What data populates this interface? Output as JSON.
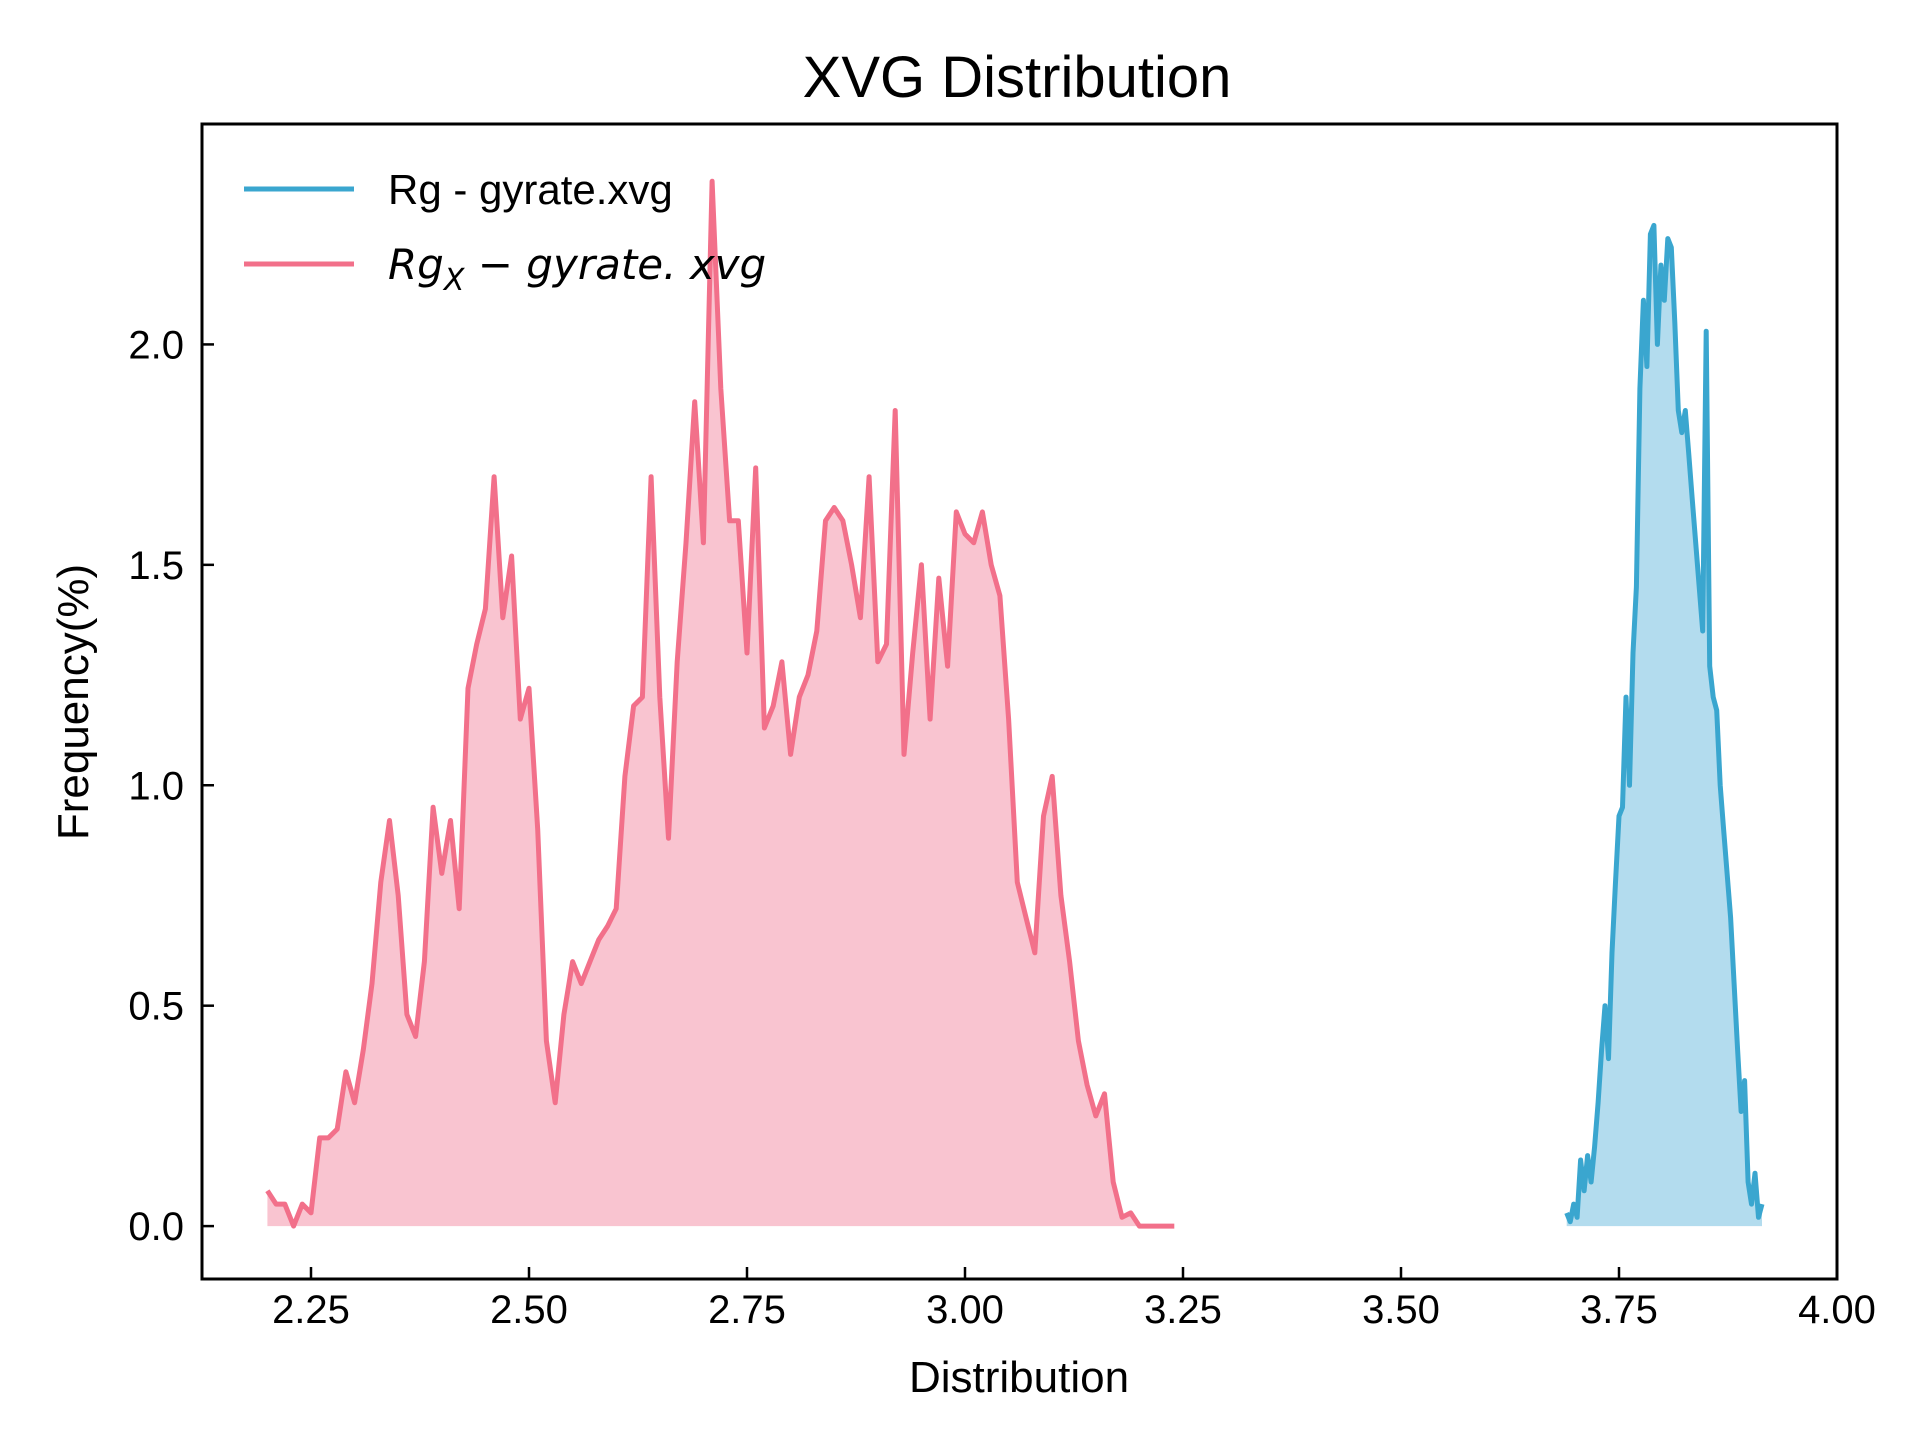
{
  "chart_data": {
    "type": "area",
    "title": "XVG Distribution",
    "xlabel": "Distribution",
    "ylabel": "Frequency(%)",
    "xlim": [
      2.125,
      4.0
    ],
    "ylim": [
      -0.12,
      2.5
    ],
    "x_ticks": [
      2.25,
      2.5,
      2.75,
      3.0,
      3.25,
      3.5,
      3.75,
      4.0
    ],
    "x_tick_labels": [
      "2.25",
      "2.50",
      "2.75",
      "3.00",
      "3.25",
      "3.50",
      "3.75",
      "4.00"
    ],
    "y_ticks": [
      0.0,
      0.5,
      1.0,
      1.5,
      2.0
    ],
    "y_tick_labels": [
      "0.0",
      "0.5",
      "1.0",
      "1.5",
      "2.0"
    ],
    "grid": false,
    "legend_position": "top-left",
    "legend": [
      {
        "main": "Rg - gyrate.xvg",
        "sub": "",
        "rest": ""
      },
      {
        "main": "Rg",
        "sub": "X",
        "rest": " − gyrate. xvg"
      }
    ],
    "series": [
      {
        "color": "#3aa6cf",
        "fill_color": "#b3dcee",
        "x": [
          3.69,
          3.694,
          3.698,
          3.702,
          3.706,
          3.71,
          3.714,
          3.718,
          3.722,
          3.726,
          3.73,
          3.734,
          3.738,
          3.742,
          3.746,
          3.75,
          3.754,
          3.758,
          3.762,
          3.766,
          3.77,
          3.774,
          3.778,
          3.782,
          3.786,
          3.79,
          3.794,
          3.798,
          3.802,
          3.806,
          3.81,
          3.814,
          3.818,
          3.822,
          3.826,
          3.83,
          3.834,
          3.838,
          3.842,
          3.846,
          3.85,
          3.854,
          3.858,
          3.862,
          3.866,
          3.87,
          3.874,
          3.878,
          3.882,
          3.886,
          3.89,
          3.894,
          3.898,
          3.902,
          3.906,
          3.91,
          3.914
        ],
        "y": [
          0.03,
          0.01,
          0.05,
          0.02,
          0.15,
          0.08,
          0.16,
          0.1,
          0.18,
          0.28,
          0.4,
          0.5,
          0.38,
          0.62,
          0.78,
          0.93,
          0.95,
          1.2,
          1.0,
          1.3,
          1.45,
          1.9,
          2.1,
          1.95,
          2.25,
          2.27,
          2.0,
          2.18,
          2.1,
          2.24,
          2.22,
          2.05,
          1.85,
          1.8,
          1.85,
          1.75,
          1.65,
          1.55,
          1.45,
          1.35,
          2.03,
          1.27,
          1.2,
          1.17,
          1.0,
          0.9,
          0.8,
          0.7,
          0.55,
          0.4,
          0.26,
          0.33,
          0.1,
          0.05,
          0.12,
          0.02,
          0.05
        ]
      },
      {
        "color": "#f2708a",
        "fill_color": "#f9c4d0",
        "x": [
          2.2,
          2.21,
          2.22,
          2.23,
          2.24,
          2.25,
          2.26,
          2.27,
          2.28,
          2.29,
          2.3,
          2.31,
          2.32,
          2.33,
          2.34,
          2.35,
          2.36,
          2.37,
          2.38,
          2.39,
          2.4,
          2.41,
          2.42,
          2.43,
          2.44,
          2.45,
          2.46,
          2.47,
          2.48,
          2.49,
          2.5,
          2.51,
          2.52,
          2.53,
          2.54,
          2.55,
          2.56,
          2.57,
          2.58,
          2.59,
          2.6,
          2.61,
          2.62,
          2.63,
          2.64,
          2.65,
          2.66,
          2.67,
          2.68,
          2.69,
          2.7,
          2.71,
          2.72,
          2.73,
          2.74,
          2.75,
          2.76,
          2.77,
          2.78,
          2.79,
          2.8,
          2.81,
          2.82,
          2.83,
          2.84,
          2.85,
          2.86,
          2.87,
          2.88,
          2.89,
          2.9,
          2.91,
          2.92,
          2.93,
          2.94,
          2.95,
          2.96,
          2.97,
          2.98,
          2.99,
          3.0,
          3.01,
          3.02,
          3.03,
          3.04,
          3.05,
          3.06,
          3.07,
          3.08,
          3.09,
          3.1,
          3.11,
          3.12,
          3.13,
          3.14,
          3.15,
          3.16,
          3.17,
          3.18,
          3.19,
          3.2,
          3.21,
          3.22,
          3.23,
          3.24
        ],
        "y": [
          0.08,
          0.05,
          0.05,
          0.0,
          0.05,
          0.03,
          0.2,
          0.2,
          0.22,
          0.35,
          0.28,
          0.4,
          0.55,
          0.78,
          0.92,
          0.75,
          0.48,
          0.43,
          0.6,
          0.95,
          0.8,
          0.92,
          0.72,
          1.22,
          1.32,
          1.4,
          1.7,
          1.38,
          1.52,
          1.15,
          1.22,
          0.9,
          0.42,
          0.28,
          0.48,
          0.6,
          0.55,
          0.6,
          0.65,
          0.68,
          0.72,
          1.02,
          1.18,
          1.2,
          1.7,
          1.2,
          0.88,
          1.28,
          1.55,
          1.87,
          1.55,
          2.37,
          1.9,
          1.6,
          1.6,
          1.3,
          1.72,
          1.13,
          1.18,
          1.28,
          1.07,
          1.2,
          1.25,
          1.35,
          1.6,
          1.63,
          1.6,
          1.5,
          1.38,
          1.7,
          1.28,
          1.32,
          1.85,
          1.07,
          1.3,
          1.5,
          1.15,
          1.47,
          1.27,
          1.62,
          1.57,
          1.55,
          1.62,
          1.5,
          1.43,
          1.15,
          0.78,
          0.7,
          0.62,
          0.93,
          1.02,
          0.75,
          0.6,
          0.42,
          0.32,
          0.25,
          0.3,
          0.1,
          0.02,
          0.03,
          0.0,
          0.0,
          0.0,
          0.0,
          0.0
        ]
      }
    ]
  }
}
